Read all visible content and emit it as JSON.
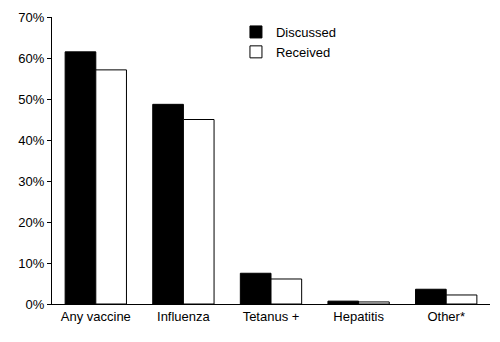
{
  "chart_data": {
    "type": "bar",
    "categories": [
      "Any vaccine",
      "Influenza",
      "Tetanus +",
      "Hepatitis",
      "Other*"
    ],
    "series": [
      {
        "name": "Discussed",
        "color": "#000000",
        "values": [
          61.5,
          48.7,
          7.5,
          0.7,
          3.6
        ]
      },
      {
        "name": "Received",
        "color": "#ffffff",
        "values": [
          57.1,
          45.0,
          6.1,
          0.5,
          2.2
        ]
      }
    ],
    "ylim": [
      0,
      70
    ],
    "yticks": [
      {
        "value": 0,
        "label": "0%"
      },
      {
        "value": 10,
        "label": "10%"
      },
      {
        "value": 20,
        "label": "20%"
      },
      {
        "value": 30,
        "label": "30%"
      },
      {
        "value": 40,
        "label": "40%"
      },
      {
        "value": 50,
        "label": "50%"
      },
      {
        "value": 60,
        "label": "60%"
      },
      {
        "value": 70,
        "label": "70%"
      }
    ],
    "grid": false,
    "legend": "top"
  }
}
